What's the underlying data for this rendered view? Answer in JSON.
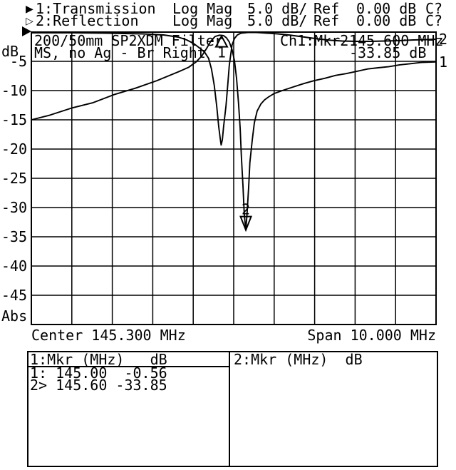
{
  "header": {
    "rows": [
      {
        "marker_icon": "▶",
        "label": "1:Transmission",
        "format": "Log Mag",
        "scale": "5.0 dB/",
        "ref_label": "Ref",
        "ref_value": "0.00 dB",
        "cal": "C?"
      },
      {
        "marker_icon": "▷",
        "label": "2:Reflection",
        "format": "Log Mag",
        "scale": "5.0 dB/",
        "ref_label": "Ref",
        "ref_value": "0.00 dB",
        "cal": "C?"
      }
    ]
  },
  "chart_data": {
    "type": "line",
    "title": "200/50mm SP2XDM Filter",
    "subtitle": "MS, no Ag - Br Right",
    "readout": {
      "channel": "Ch1:Mkr2",
      "freq": "145.600 MHz",
      "value": "-33.85 dB"
    },
    "xlabel_center": "Center 145.300 MHz",
    "xlabel_span": "Span 10.000 MHz",
    "ylabel_top": "dB",
    "ylabel_bottom": "Abs",
    "x_unit": "MHz",
    "y_unit": "dB",
    "scale_per_div": "5.0 dB",
    "ref_level": "0.00 dB",
    "xlim": [
      140.3,
      150.3
    ],
    "ylim": [
      -50,
      0
    ],
    "x_divisions": 10,
    "y_divisions": 10,
    "y_tick_labels": [
      "-5",
      "-10",
      "-15",
      "-20",
      "-25",
      "-30",
      "-35",
      "-40",
      "-45"
    ],
    "grid": true,
    "series": [
      {
        "name": "Transmission",
        "trace": "1",
        "end_label": "1",
        "points": [
          [
            140.3,
            -15.0
          ],
          [
            140.76,
            -14.2
          ],
          [
            141.29,
            -13.0
          ],
          [
            141.81,
            -12.1
          ],
          [
            142.34,
            -10.7
          ],
          [
            142.87,
            -9.6
          ],
          [
            143.4,
            -8.3
          ],
          [
            143.93,
            -6.8
          ],
          [
            144.19,
            -6.0
          ],
          [
            144.37,
            -5.1
          ],
          [
            144.51,
            -4.1
          ],
          [
            144.63,
            -2.8
          ],
          [
            144.74,
            -1.5
          ],
          [
            144.84,
            -0.75
          ],
          [
            144.95,
            -0.52
          ],
          [
            145.0,
            -0.56
          ],
          [
            145.05,
            -0.61
          ],
          [
            145.12,
            -0.98
          ],
          [
            145.19,
            -1.7
          ],
          [
            145.26,
            -3.0
          ],
          [
            145.32,
            -4.9
          ],
          [
            145.37,
            -7.9
          ],
          [
            145.42,
            -12.2
          ],
          [
            145.46,
            -16.5
          ],
          [
            145.49,
            -21.3
          ],
          [
            145.53,
            -26.5
          ],
          [
            145.56,
            -31.1
          ],
          [
            145.6,
            -33.85
          ],
          [
            145.63,
            -31.1
          ],
          [
            145.67,
            -26.5
          ],
          [
            145.7,
            -22.3
          ],
          [
            145.76,
            -18.4
          ],
          [
            145.81,
            -15.5
          ],
          [
            145.88,
            -13.5
          ],
          [
            145.97,
            -12.3
          ],
          [
            146.06,
            -11.6
          ],
          [
            146.16,
            -11.1
          ],
          [
            146.3,
            -10.5
          ],
          [
            146.5,
            -10.0
          ],
          [
            146.76,
            -9.4
          ],
          [
            147.03,
            -8.8
          ],
          [
            147.29,
            -8.3
          ],
          [
            147.55,
            -7.9
          ],
          [
            147.82,
            -7.4
          ],
          [
            148.08,
            -7.1
          ],
          [
            148.35,
            -6.7
          ],
          [
            148.61,
            -6.3
          ],
          [
            148.87,
            -6.1
          ],
          [
            149.14,
            -5.9
          ],
          [
            149.4,
            -5.6
          ],
          [
            149.67,
            -5.4
          ],
          [
            149.93,
            -5.2
          ],
          [
            150.3,
            -5.1
          ]
        ]
      },
      {
        "name": "Reflection",
        "trace": "2",
        "end_label": "2",
        "points": [
          [
            140.3,
            -0.12
          ],
          [
            141.29,
            -0.12
          ],
          [
            142.17,
            -0.18
          ],
          [
            143.05,
            -0.3
          ],
          [
            143.57,
            -0.49
          ],
          [
            143.93,
            -0.85
          ],
          [
            144.14,
            -1.34
          ],
          [
            144.31,
            -1.95
          ],
          [
            144.45,
            -2.68
          ],
          [
            144.58,
            -3.41
          ],
          [
            144.68,
            -4.5
          ],
          [
            144.75,
            -6.3
          ],
          [
            144.82,
            -9.1
          ],
          [
            144.88,
            -12.6
          ],
          [
            144.93,
            -16.2
          ],
          [
            144.97,
            -18.4
          ],
          [
            144.99,
            -19.3
          ],
          [
            145.02,
            -18.4
          ],
          [
            145.05,
            -16.2
          ],
          [
            145.11,
            -12.6
          ],
          [
            145.16,
            -8.5
          ],
          [
            145.19,
            -5.7
          ],
          [
            145.23,
            -3.7
          ],
          [
            145.26,
            -2.2
          ],
          [
            145.32,
            -1.1
          ],
          [
            145.39,
            -0.49
          ],
          [
            145.48,
            -0.18
          ],
          [
            145.65,
            -0.06
          ],
          [
            145.86,
            -0.06
          ],
          [
            146.13,
            -0.18
          ],
          [
            146.39,
            -0.3
          ],
          [
            146.66,
            -0.49
          ],
          [
            146.92,
            -0.73
          ],
          [
            147.18,
            -0.98
          ],
          [
            147.45,
            -1.22
          ],
          [
            147.71,
            -1.4
          ],
          [
            147.98,
            -1.52
          ],
          [
            148.33,
            -1.59
          ],
          [
            148.68,
            -1.59
          ],
          [
            149.03,
            -1.52
          ],
          [
            149.38,
            -1.46
          ],
          [
            149.74,
            -1.34
          ],
          [
            150.09,
            -1.28
          ],
          [
            150.3,
            -1.22
          ]
        ]
      }
    ],
    "markers": [
      {
        "label": "1",
        "mhz": 145.0,
        "db": -0.56,
        "symbol": "triangle-up"
      },
      {
        "label": "2",
        "mhz": 145.6,
        "db": -33.85,
        "symbol": "triangle-down"
      }
    ]
  },
  "marker_table": {
    "left": {
      "header": "1:Mkr (MHz)   dB",
      "rows": [
        "1: 145.00  -0.56",
        "2> 145.60 -33.85"
      ]
    },
    "right": {
      "header": "2:Mkr (MHz)  dB",
      "rows": []
    }
  }
}
